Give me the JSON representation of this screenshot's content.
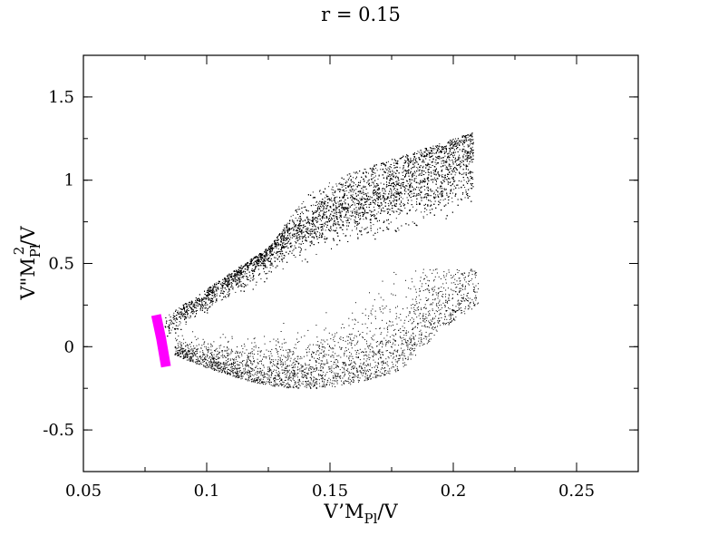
{
  "chart_data": {
    "type": "scatter",
    "title": "r = 0.15",
    "xlabel": {
      "main": "V’M",
      "sub": "Pl",
      "tail": "/V"
    },
    "ylabel": {
      "main": "V\"M",
      "sub": "Pl",
      "sup": "2",
      "tail": "/V"
    },
    "xlim": [
      0.05,
      0.275
    ],
    "ylim": [
      -0.75,
      1.75
    ],
    "x_ticks": [
      {
        "value": 0.05,
        "label": "0.05"
      },
      {
        "value": 0.1,
        "label": "0.1"
      },
      {
        "value": 0.15,
        "label": "0.15"
      },
      {
        "value": 0.2,
        "label": "0.2"
      },
      {
        "value": 0.25,
        "label": "0.25"
      }
    ],
    "y_ticks": [
      {
        "value": -0.5,
        "label": "-0.5"
      },
      {
        "value": 0,
        "label": "0"
      },
      {
        "value": 0.5,
        "label": "0.5"
      },
      {
        "value": 1,
        "label": "1"
      },
      {
        "value": 1.5,
        "label": "1.5"
      }
    ],
    "minor_x_step": 0.025,
    "minor_y_step": 0.25,
    "grid": false,
    "legend": "none",
    "series": [
      {
        "color": "#000000",
        "marker": "dot",
        "description_regions": {
          "upper_band_outline": [
            [
              0.082,
              0.17
            ],
            [
              0.12,
              0.55
            ],
            [
              0.14,
              0.95
            ],
            [
              0.17,
              1.07
            ],
            [
              0.208,
              1.29
            ],
            [
              0.208,
              1.1
            ],
            [
              0.18,
              0.75
            ],
            [
              0.155,
              0.48
            ],
            [
              0.13,
              0.38
            ],
            [
              0.1,
              0.15
            ],
            [
              0.085,
              0.05
            ]
          ],
          "lower_arc_outline": [
            [
              0.085,
              0.12
            ],
            [
              0.1,
              -0.1
            ],
            [
              0.125,
              -0.2
            ],
            [
              0.15,
              -0.25
            ],
            [
              0.175,
              -0.18
            ],
            [
              0.2,
              0.05
            ],
            [
              0.21,
              0.25
            ],
            [
              0.21,
              0.45
            ],
            [
              0.195,
              0.45
            ],
            [
              0.185,
              0.35
            ],
            [
              0.165,
              0.1
            ],
            [
              0.14,
              -0.02
            ],
            [
              0.115,
              0.05
            ],
            [
              0.1,
              0.12
            ]
          ]
        }
      },
      {
        "color": "#ff00ff",
        "marker": "thick-line",
        "points": [
          [
            0.0795,
            0.19
          ],
          [
            0.0815,
            0.05
          ],
          [
            0.0835,
            -0.12
          ]
        ],
        "band_width": 0.004
      }
    ]
  }
}
